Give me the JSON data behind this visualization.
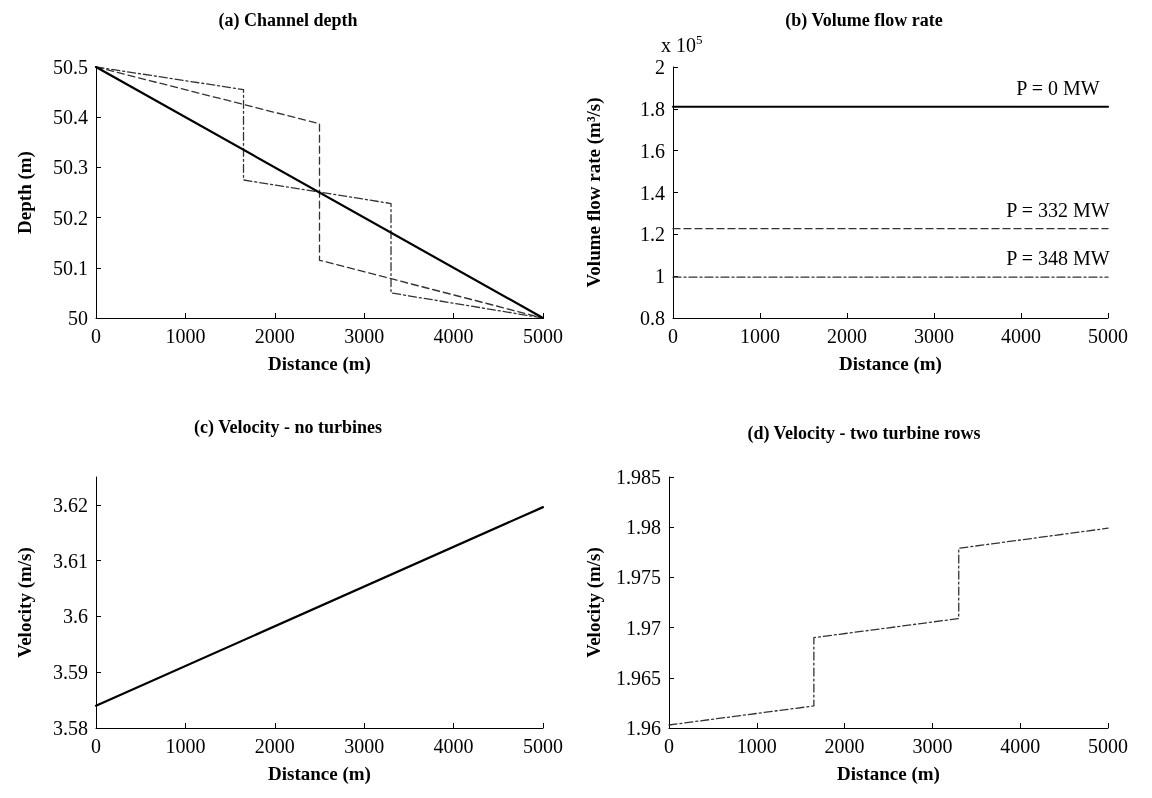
{
  "chart_data": [
    {
      "type": "line",
      "title": "(a) Channel depth",
      "xlabel": "Distance (m)",
      "ylabel": "Depth (m)",
      "xlim": [
        0,
        5000
      ],
      "xticks": [
        0,
        1000,
        2000,
        3000,
        4000,
        5000
      ],
      "ylim": [
        50,
        50.5
      ],
      "yticks": [
        50,
        50.1,
        50.2,
        50.3,
        50.4,
        50.5
      ],
      "series": [
        {
          "color": "#000000",
          "line_style": "solid",
          "x": [
            0,
            5000
          ],
          "values": [
            50.5,
            50
          ]
        },
        {
          "color": "#333333",
          "line_style": "dashed",
          "x": [
            0,
            2500,
            2500,
            5000
          ],
          "values": [
            50.5,
            50.387,
            50.115,
            50
          ]
        },
        {
          "color": "#333333",
          "line_style": "dashdot",
          "x": [
            0,
            1650,
            1650,
            3300,
            3300,
            5000
          ],
          "values": [
            50.5,
            50.455,
            50.275,
            50.228,
            50.05,
            50
          ]
        }
      ]
    },
    {
      "type": "line",
      "title": "(b) Volume flow rate",
      "xlabel": "Distance (m)",
      "ylabel": "Volume flow rate (m³/s)",
      "annotations": [
        "x 10$^{5}$"
      ],
      "xlim": [
        0,
        5000
      ],
      "xticks": [
        0,
        1000,
        2000,
        3000,
        4000,
        5000
      ],
      "ylim": [
        0.8,
        2
      ],
      "yticks": [
        0.8,
        1,
        1.2,
        1.4,
        1.6,
        1.8,
        2
      ],
      "series": [
        {
          "name": "P = 0 MW",
          "color": "#000000",
          "line_style": "solid",
          "x": [
            0,
            5000
          ],
          "values": [
            1.81,
            1.81
          ]
        },
        {
          "name": "P = 332 MW",
          "color": "#333333",
          "line_style": "dashed",
          "x": [
            0,
            5000
          ],
          "values": [
            1.227,
            1.227
          ]
        },
        {
          "name": "P = 348 MW",
          "color": "#333333",
          "line_style": "dashdot",
          "x": [
            0,
            5000
          ],
          "values": [
            0.995,
            0.995
          ]
        }
      ]
    },
    {
      "type": "line",
      "title": "(c) Velocity - no turbines",
      "xlabel": "Distance (m)",
      "ylabel": "Velocity (m/s)",
      "xlim": [
        0,
        5000
      ],
      "xticks": [
        0,
        1000,
        2000,
        3000,
        4000,
        5000
      ],
      "ylim": [
        3.58,
        3.625
      ],
      "yticks": [
        3.58,
        3.59,
        3.6,
        3.61,
        3.62
      ],
      "series": [
        {
          "color": "#000000",
          "line_style": "solid",
          "x": [
            0,
            5000
          ],
          "values": [
            3.584,
            3.6196
          ]
        }
      ]
    },
    {
      "type": "line",
      "title": "(d) Velocity - two turbine rows",
      "xlabel": "Distance (m)",
      "ylabel": "Velocity (m/s)",
      "xlim": [
        0,
        5000
      ],
      "xticks": [
        0,
        1000,
        2000,
        3000,
        4000,
        5000
      ],
      "ylim": [
        1.96,
        1.985
      ],
      "yticks": [
        1.96,
        1.965,
        1.97,
        1.975,
        1.98,
        1.985
      ],
      "series": [
        {
          "color": "#333333",
          "line_style": "dashdot",
          "x": [
            0,
            1650,
            1650,
            3300,
            3300,
            5000
          ],
          "values": [
            1.9603,
            1.9622,
            1.969,
            1.9709,
            1.9779,
            1.9799
          ]
        }
      ]
    }
  ]
}
